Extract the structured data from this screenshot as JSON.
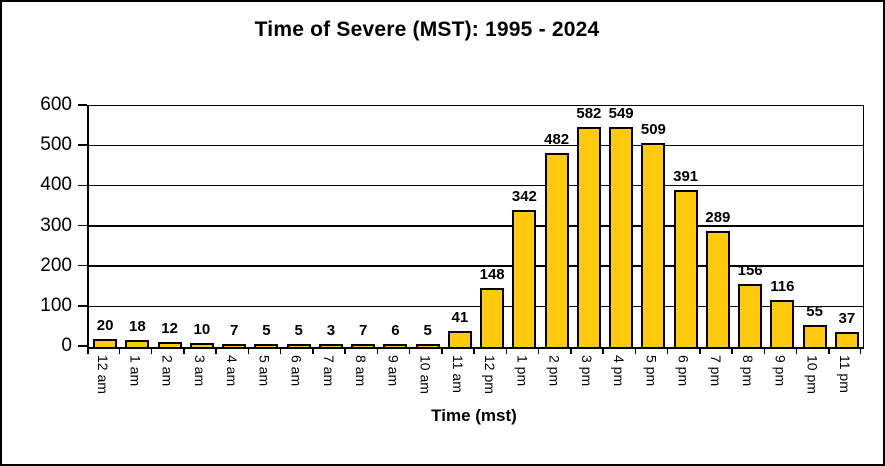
{
  "window": {
    "background_color": "#ffffff",
    "frame_border_color": "#000000"
  },
  "chart_data": {
    "type": "bar",
    "title": "Time of Severe (MST): 1995 - 2024",
    "xlabel": "Time (mst)",
    "ylabel": "",
    "ylim": [
      0,
      600
    ],
    "yticks": [
      0,
      100,
      200,
      300,
      400,
      500,
      600
    ],
    "grid": true,
    "legend": false,
    "data_labels": true,
    "bar_color": "#FFC90E",
    "bar_border_color": "#000000",
    "text_color": "#000000",
    "gridline_color": "#000000",
    "categories": [
      "12 am",
      "1 am",
      "2 am",
      "3 am",
      "4 am",
      "5 am",
      "6 am",
      "7 am",
      "8 am",
      "9 am",
      "10 am",
      "11 am",
      "12 pm",
      "1 pm",
      "2 pm",
      "3 pm",
      "4 pm",
      "5 pm",
      "6 pm",
      "7 pm",
      "8 pm",
      "9 pm",
      "10 pm",
      "11 pm"
    ],
    "values": [
      20,
      18,
      12,
      10,
      7,
      5,
      5,
      3,
      7,
      6,
      5,
      41,
      148,
      342,
      482,
      582,
      549,
      509,
      391,
      289,
      156,
      116,
      55,
      37
    ]
  }
}
